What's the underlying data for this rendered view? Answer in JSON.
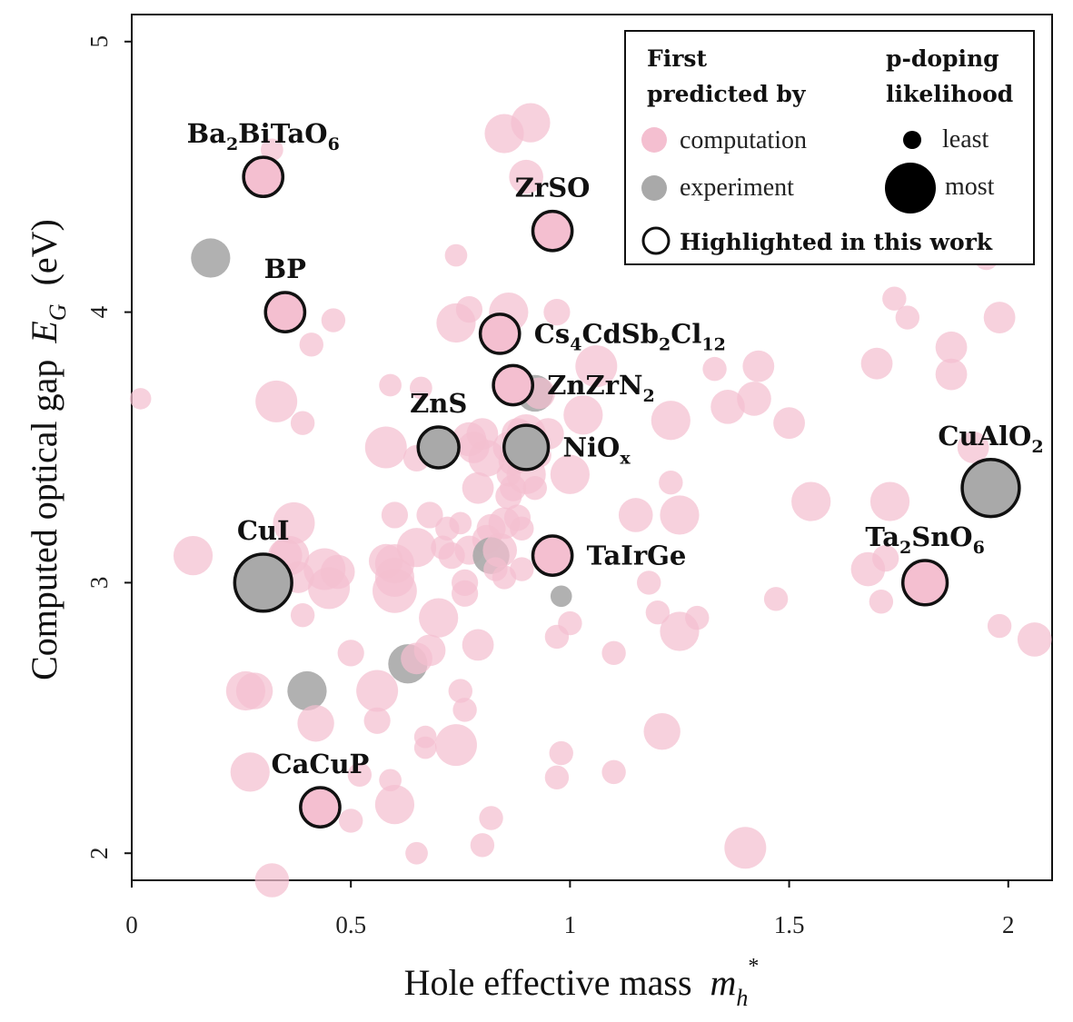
{
  "chart_data": {
    "type": "scatter",
    "xlabel": "Hole effective mass",
    "xlabel_symbol": "m",
    "xlabel_sub": "h",
    "xlabel_sup": "*",
    "ylabel": "Computed optical gap",
    "ylabel_symbol": "E",
    "ylabel_sub": "G",
    "ylabel_unit": "(eV)",
    "xlim": [
      0,
      2.1
    ],
    "ylim": [
      1.9,
      5.1
    ],
    "x_ticks": [
      {
        "value": 0,
        "label": "0"
      },
      {
        "value": 0.5,
        "label": "0.5"
      },
      {
        "value": 1,
        "label": "1"
      },
      {
        "value": 1.5,
        "label": "1.5"
      },
      {
        "value": 2,
        "label": "2"
      }
    ],
    "y_ticks": [
      {
        "value": 2,
        "label": "2"
      },
      {
        "value": 3,
        "label": "3"
      },
      {
        "value": 4,
        "label": "4"
      },
      {
        "value": 5,
        "label": "5"
      }
    ],
    "colors": {
      "computation": "#f4bfd0",
      "experiment": "#a9a9a9",
      "highlight_stroke": "#111111",
      "text": "#111111"
    },
    "size_meaning": "p-doping likelihood (0 = least, 1 = most)",
    "legend": {
      "col1_title": [
        "First",
        "predicted by"
      ],
      "col2_title": [
        "p-doping",
        "likelihood"
      ],
      "computation": "computation",
      "experiment": "experiment",
      "least": "least",
      "most": "most",
      "highlighted": "Highlighted in this work"
    },
    "highlighted": [
      {
        "name": "Ba2BiTaO6",
        "parts": [
          [
            "Ba",
            ""
          ],
          [
            "2",
            "sub"
          ],
          [
            "BiTaO",
            ""
          ],
          [
            "6",
            "sub"
          ]
        ],
        "x": 0.3,
        "y": 4.5,
        "likelihood": 0.45,
        "source": "computation",
        "label_side": "above"
      },
      {
        "name": "ZrSO",
        "parts": [
          [
            "ZrSO",
            ""
          ]
        ],
        "x": 0.96,
        "y": 4.3,
        "likelihood": 0.45,
        "source": "computation",
        "label_side": "above"
      },
      {
        "name": "BP",
        "parts": [
          [
            "BP",
            ""
          ]
        ],
        "x": 0.35,
        "y": 4.0,
        "likelihood": 0.45,
        "source": "computation",
        "label_side": "above"
      },
      {
        "name": "Cs4CdSb2Cl12",
        "parts": [
          [
            "Cs",
            ""
          ],
          [
            "4",
            "sub"
          ],
          [
            "CdSb",
            ""
          ],
          [
            "2",
            "sub"
          ],
          [
            "Cl",
            ""
          ],
          [
            "12",
            "sub"
          ]
        ],
        "x": 0.84,
        "y": 3.92,
        "likelihood": 0.45,
        "source": "computation",
        "label_side": "right"
      },
      {
        "name": "ZnZrN2",
        "parts": [
          [
            "ZnZrN",
            ""
          ],
          [
            "2",
            "sub"
          ]
        ],
        "x": 0.87,
        "y": 3.73,
        "likelihood": 0.45,
        "source": "computation",
        "label_side": "right"
      },
      {
        "name": "ZnS",
        "parts": [
          [
            "ZnS",
            ""
          ]
        ],
        "x": 0.7,
        "y": 3.5,
        "likelihood": 0.48,
        "source": "experiment",
        "label_side": "above"
      },
      {
        "name": "NiOx",
        "parts": [
          [
            "NiO",
            ""
          ],
          [
            "x",
            "sub"
          ]
        ],
        "x": 0.9,
        "y": 3.5,
        "likelihood": 0.55,
        "source": "experiment",
        "label_side": "right"
      },
      {
        "name": "CuAlO2",
        "parts": [
          [
            "CuAlO",
            ""
          ],
          [
            "2",
            "sub"
          ]
        ],
        "x": 1.96,
        "y": 3.35,
        "likelihood": 0.8,
        "source": "experiment",
        "label_side": "above"
      },
      {
        "name": "CuI",
        "parts": [
          [
            "CuI",
            ""
          ]
        ],
        "x": 0.3,
        "y": 3.0,
        "likelihood": 0.8,
        "source": "experiment",
        "label_side": "above"
      },
      {
        "name": "TaIrGe",
        "parts": [
          [
            "TaIrGe",
            ""
          ]
        ],
        "x": 0.96,
        "y": 3.1,
        "likelihood": 0.45,
        "source": "computation",
        "label_side": "right"
      },
      {
        "name": "Ta2SnO6",
        "parts": [
          [
            "Ta",
            ""
          ],
          [
            "2",
            "sub"
          ],
          [
            "SnO",
            ""
          ],
          [
            "6",
            "sub"
          ]
        ],
        "x": 1.81,
        "y": 3.0,
        "likelihood": 0.55,
        "source": "computation",
        "label_side": "above"
      },
      {
        "name": "CaCuP",
        "parts": [
          [
            "CaCuP",
            ""
          ]
        ],
        "x": 0.43,
        "y": 2.17,
        "likelihood": 0.45,
        "source": "computation",
        "label_side": "above"
      }
    ],
    "points": [
      {
        "x": 0.02,
        "y": 3.68,
        "s": 0.1,
        "src": "computation"
      },
      {
        "x": 0.14,
        "y": 3.1,
        "s": 0.45,
        "src": "computation"
      },
      {
        "x": 0.18,
        "y": 4.2,
        "s": 0.45,
        "src": "experiment"
      },
      {
        "x": 0.26,
        "y": 2.6,
        "s": 0.45,
        "src": "computation"
      },
      {
        "x": 0.28,
        "y": 2.6,
        "s": 0.4,
        "src": "computation"
      },
      {
        "x": 0.27,
        "y": 2.3,
        "s": 0.45,
        "src": "computation"
      },
      {
        "x": 0.32,
        "y": 1.9,
        "s": 0.35,
        "src": "computation"
      },
      {
        "x": 0.32,
        "y": 3.02,
        "s": 0.15,
        "src": "computation"
      },
      {
        "x": 0.33,
        "y": 3.67,
        "s": 0.5,
        "src": "computation"
      },
      {
        "x": 0.35,
        "y": 3.1,
        "s": 0.35,
        "src": "computation"
      },
      {
        "x": 0.37,
        "y": 3.22,
        "s": 0.5,
        "src": "computation"
      },
      {
        "x": 0.36,
        "y": 3.1,
        "s": 0.45,
        "src": "computation"
      },
      {
        "x": 0.38,
        "y": 3.02,
        "s": 0.3,
        "src": "computation"
      },
      {
        "x": 0.39,
        "y": 2.88,
        "s": 0.15,
        "src": "computation"
      },
      {
        "x": 0.39,
        "y": 3.59,
        "s": 0.15,
        "src": "computation"
      },
      {
        "x": 0.4,
        "y": 2.6,
        "s": 0.45,
        "src": "experiment"
      },
      {
        "x": 0.41,
        "y": 3.88,
        "s": 0.15,
        "src": "computation"
      },
      {
        "x": 0.42,
        "y": 2.48,
        "s": 0.4,
        "src": "computation"
      },
      {
        "x": 0.44,
        "y": 3.05,
        "s": 0.5,
        "src": "computation"
      },
      {
        "x": 0.45,
        "y": 2.98,
        "s": 0.5,
        "src": "computation"
      },
      {
        "x": 0.46,
        "y": 3.97,
        "s": 0.15,
        "src": "computation"
      },
      {
        "x": 0.47,
        "y": 3.04,
        "s": 0.35,
        "src": "computation"
      },
      {
        "x": 0.5,
        "y": 2.74,
        "s": 0.2,
        "src": "computation"
      },
      {
        "x": 0.5,
        "y": 2.12,
        "s": 0.15,
        "src": "computation"
      },
      {
        "x": 0.52,
        "y": 2.29,
        "s": 0.15,
        "src": "computation"
      },
      {
        "x": 0.32,
        "y": 4.6,
        "s": 0.12,
        "src": "computation"
      },
      {
        "x": 0.56,
        "y": 2.6,
        "s": 0.5,
        "src": "computation"
      },
      {
        "x": 0.56,
        "y": 2.49,
        "s": 0.2,
        "src": "computation"
      },
      {
        "x": 0.58,
        "y": 3.5,
        "s": 0.5,
        "src": "computation"
      },
      {
        "x": 0.58,
        "y": 3.08,
        "s": 0.35,
        "src": "computation"
      },
      {
        "x": 0.59,
        "y": 2.27,
        "s": 0.12,
        "src": "computation"
      },
      {
        "x": 0.59,
        "y": 3.73,
        "s": 0.12,
        "src": "computation"
      },
      {
        "x": 0.6,
        "y": 2.97,
        "s": 0.55,
        "src": "computation"
      },
      {
        "x": 0.6,
        "y": 3.02,
        "s": 0.45,
        "src": "computation"
      },
      {
        "x": 0.6,
        "y": 3.25,
        "s": 0.2,
        "src": "computation"
      },
      {
        "x": 0.6,
        "y": 3.07,
        "s": 0.45,
        "src": "computation"
      },
      {
        "x": 0.6,
        "y": 2.18,
        "s": 0.45,
        "src": "computation"
      },
      {
        "x": 0.63,
        "y": 2.7,
        "s": 0.45,
        "src": "experiment"
      },
      {
        "x": 0.65,
        "y": 2.0,
        "s": 0.12,
        "src": "computation"
      },
      {
        "x": 0.65,
        "y": 2.72,
        "s": 0.3,
        "src": "computation"
      },
      {
        "x": 0.65,
        "y": 3.13,
        "s": 0.45,
        "src": "computation"
      },
      {
        "x": 0.65,
        "y": 3.46,
        "s": 0.2,
        "src": "computation"
      },
      {
        "x": 0.66,
        "y": 3.72,
        "s": 0.12,
        "src": "computation"
      },
      {
        "x": 0.67,
        "y": 2.43,
        "s": 0.12,
        "src": "computation"
      },
      {
        "x": 0.67,
        "y": 2.39,
        "s": 0.12,
        "src": "computation"
      },
      {
        "x": 0.68,
        "y": 3.25,
        "s": 0.2,
        "src": "computation"
      },
      {
        "x": 0.68,
        "y": 2.75,
        "s": 0.3,
        "src": "computation"
      },
      {
        "x": 0.7,
        "y": 2.87,
        "s": 0.45,
        "src": "computation"
      },
      {
        "x": 0.71,
        "y": 3.13,
        "s": 0.15,
        "src": "computation"
      },
      {
        "x": 0.72,
        "y": 3.5,
        "s": 0.2,
        "src": "computation"
      },
      {
        "x": 0.72,
        "y": 3.2,
        "s": 0.15,
        "src": "computation"
      },
      {
        "x": 0.73,
        "y": 3.1,
        "s": 0.2,
        "src": "computation"
      },
      {
        "x": 0.74,
        "y": 3.96,
        "s": 0.45,
        "src": "computation"
      },
      {
        "x": 0.74,
        "y": 4.21,
        "s": 0.12,
        "src": "computation"
      },
      {
        "x": 0.74,
        "y": 2.4,
        "s": 0.5,
        "src": "computation"
      },
      {
        "x": 0.75,
        "y": 3.22,
        "s": 0.12,
        "src": "computation"
      },
      {
        "x": 0.75,
        "y": 2.6,
        "s": 0.15,
        "src": "computation"
      },
      {
        "x": 0.76,
        "y": 2.96,
        "s": 0.2,
        "src": "computation"
      },
      {
        "x": 0.76,
        "y": 2.53,
        "s": 0.15,
        "src": "computation"
      },
      {
        "x": 0.76,
        "y": 3.0,
        "s": 0.2,
        "src": "computation"
      },
      {
        "x": 0.77,
        "y": 3.53,
        "s": 0.35,
        "src": "computation"
      },
      {
        "x": 0.77,
        "y": 3.12,
        "s": 0.25,
        "src": "computation"
      },
      {
        "x": 0.77,
        "y": 4.01,
        "s": 0.2,
        "src": "computation"
      },
      {
        "x": 0.78,
        "y": 3.5,
        "s": 0.3,
        "src": "computation"
      },
      {
        "x": 0.79,
        "y": 3.35,
        "s": 0.3,
        "src": "computation"
      },
      {
        "x": 0.79,
        "y": 2.77,
        "s": 0.3,
        "src": "computation"
      },
      {
        "x": 0.8,
        "y": 2.03,
        "s": 0.15,
        "src": "computation"
      },
      {
        "x": 0.8,
        "y": 3.55,
        "s": 0.3,
        "src": "computation"
      },
      {
        "x": 0.81,
        "y": 3.46,
        "s": 0.4,
        "src": "computation"
      },
      {
        "x": 0.81,
        "y": 3.16,
        "s": 0.25,
        "src": "computation"
      },
      {
        "x": 0.82,
        "y": 3.2,
        "s": 0.25,
        "src": "computation"
      },
      {
        "x": 0.82,
        "y": 3.1,
        "s": 0.4,
        "src": "experiment"
      },
      {
        "x": 0.82,
        "y": 2.13,
        "s": 0.15,
        "src": "computation"
      },
      {
        "x": 0.83,
        "y": 3.05,
        "s": 0.15,
        "src": "computation"
      },
      {
        "x": 0.84,
        "y": 3.12,
        "s": 0.35,
        "src": "computation"
      },
      {
        "x": 0.85,
        "y": 3.22,
        "s": 0.3,
        "src": "computation"
      },
      {
        "x": 0.85,
        "y": 3.02,
        "s": 0.15,
        "src": "computation"
      },
      {
        "x": 0.85,
        "y": 4.66,
        "s": 0.45,
        "src": "computation"
      },
      {
        "x": 0.86,
        "y": 3.32,
        "s": 0.2,
        "src": "computation"
      },
      {
        "x": 0.86,
        "y": 3.4,
        "s": 0.15,
        "src": "computation"
      },
      {
        "x": 0.86,
        "y": 3.5,
        "s": 0.3,
        "src": "computation"
      },
      {
        "x": 0.86,
        "y": 4.0,
        "s": 0.45,
        "src": "computation"
      },
      {
        "x": 0.87,
        "y": 3.45,
        "s": 0.25,
        "src": "computation"
      },
      {
        "x": 0.87,
        "y": 3.35,
        "s": 0.2,
        "src": "computation"
      },
      {
        "x": 0.88,
        "y": 3.55,
        "s": 0.3,
        "src": "computation"
      },
      {
        "x": 0.88,
        "y": 3.24,
        "s": 0.2,
        "src": "computation"
      },
      {
        "x": 0.89,
        "y": 3.2,
        "s": 0.15,
        "src": "computation"
      },
      {
        "x": 0.89,
        "y": 3.05,
        "s": 0.15,
        "src": "computation"
      },
      {
        "x": 0.9,
        "y": 3.4,
        "s": 0.45,
        "src": "computation"
      },
      {
        "x": 0.9,
        "y": 3.55,
        "s": 0.45,
        "src": "computation"
      },
      {
        "x": 0.9,
        "y": 4.5,
        "s": 0.35,
        "src": "computation"
      },
      {
        "x": 0.91,
        "y": 4.7,
        "s": 0.45,
        "src": "computation"
      },
      {
        "x": 0.92,
        "y": 3.35,
        "s": 0.15,
        "src": "computation"
      },
      {
        "x": 0.92,
        "y": 3.7,
        "s": 0.4,
        "src": "experiment"
      },
      {
        "x": 0.93,
        "y": 3.7,
        "s": 0.3,
        "src": "computation"
      },
      {
        "x": 0.93,
        "y": 3.47,
        "s": 0.15,
        "src": "computation"
      },
      {
        "x": 0.95,
        "y": 3.55,
        "s": 0.3,
        "src": "computation"
      },
      {
        "x": 0.97,
        "y": 2.8,
        "s": 0.15,
        "src": "computation"
      },
      {
        "x": 0.97,
        "y": 2.28,
        "s": 0.15,
        "src": "computation"
      },
      {
        "x": 0.97,
        "y": 4.0,
        "s": 0.2,
        "src": "computation"
      },
      {
        "x": 0.98,
        "y": 2.95,
        "s": 0.1,
        "src": "experiment"
      },
      {
        "x": 0.98,
        "y": 2.37,
        "s": 0.15,
        "src": "computation"
      },
      {
        "x": 1.0,
        "y": 2.85,
        "s": 0.15,
        "src": "computation"
      },
      {
        "x": 1.0,
        "y": 3.4,
        "s": 0.45,
        "src": "computation"
      },
      {
        "x": 1.03,
        "y": 3.62,
        "s": 0.45,
        "src": "computation"
      },
      {
        "x": 1.06,
        "y": 3.8,
        "s": 0.5,
        "src": "computation"
      },
      {
        "x": 1.1,
        "y": 2.3,
        "s": 0.15,
        "src": "computation"
      },
      {
        "x": 1.1,
        "y": 2.74,
        "s": 0.15,
        "src": "computation"
      },
      {
        "x": 1.15,
        "y": 3.25,
        "s": 0.35,
        "src": "computation"
      },
      {
        "x": 1.18,
        "y": 3.0,
        "s": 0.15,
        "src": "computation"
      },
      {
        "x": 1.2,
        "y": 2.89,
        "s": 0.15,
        "src": "computation"
      },
      {
        "x": 1.21,
        "y": 2.45,
        "s": 0.4,
        "src": "computation"
      },
      {
        "x": 1.23,
        "y": 3.37,
        "s": 0.15,
        "src": "computation"
      },
      {
        "x": 1.23,
        "y": 3.6,
        "s": 0.45,
        "src": "computation"
      },
      {
        "x": 1.25,
        "y": 3.25,
        "s": 0.45,
        "src": "computation"
      },
      {
        "x": 1.25,
        "y": 2.82,
        "s": 0.45,
        "src": "computation"
      },
      {
        "x": 1.29,
        "y": 2.87,
        "s": 0.15,
        "src": "computation"
      },
      {
        "x": 1.33,
        "y": 3.79,
        "s": 0.15,
        "src": "computation"
      },
      {
        "x": 1.36,
        "y": 3.65,
        "s": 0.35,
        "src": "computation"
      },
      {
        "x": 1.4,
        "y": 2.02,
        "s": 0.5,
        "src": "computation"
      },
      {
        "x": 1.42,
        "y": 3.68,
        "s": 0.35,
        "src": "computation"
      },
      {
        "x": 1.43,
        "y": 3.8,
        "s": 0.3,
        "src": "computation"
      },
      {
        "x": 1.47,
        "y": 2.94,
        "s": 0.15,
        "src": "computation"
      },
      {
        "x": 1.5,
        "y": 3.59,
        "s": 0.3,
        "src": "computation"
      },
      {
        "x": 1.55,
        "y": 3.3,
        "s": 0.45,
        "src": "computation"
      },
      {
        "x": 1.68,
        "y": 3.05,
        "s": 0.35,
        "src": "computation"
      },
      {
        "x": 1.7,
        "y": 3.81,
        "s": 0.3,
        "src": "computation"
      },
      {
        "x": 1.71,
        "y": 2.93,
        "s": 0.15,
        "src": "computation"
      },
      {
        "x": 1.72,
        "y": 3.09,
        "s": 0.2,
        "src": "computation"
      },
      {
        "x": 1.73,
        "y": 3.3,
        "s": 0.45,
        "src": "computation"
      },
      {
        "x": 1.74,
        "y": 4.05,
        "s": 0.15,
        "src": "computation"
      },
      {
        "x": 1.77,
        "y": 3.98,
        "s": 0.15,
        "src": "computation"
      },
      {
        "x": 1.87,
        "y": 3.87,
        "s": 0.3,
        "src": "computation"
      },
      {
        "x": 1.87,
        "y": 3.77,
        "s": 0.3,
        "src": "computation"
      },
      {
        "x": 1.92,
        "y": 3.5,
        "s": 0.3,
        "src": "computation"
      },
      {
        "x": 1.95,
        "y": 4.2,
        "s": 0.15,
        "src": "computation"
      },
      {
        "x": 1.98,
        "y": 2.84,
        "s": 0.15,
        "src": "computation"
      },
      {
        "x": 1.98,
        "y": 3.98,
        "s": 0.3,
        "src": "computation"
      },
      {
        "x": 2.06,
        "y": 2.79,
        "s": 0.35,
        "src": "computation"
      }
    ]
  }
}
